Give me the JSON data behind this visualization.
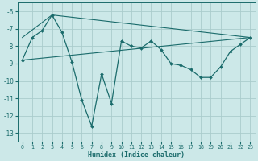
{
  "xlabel": "Humidex (Indice chaleur)",
  "bg_color": "#cce8e8",
  "grid_color": "#aacccc",
  "line_color": "#1a6b6b",
  "xlim": [
    -0.5,
    23.5
  ],
  "ylim": [
    -13.5,
    -5.5
  ],
  "yticks": [
    -13,
    -12,
    -11,
    -10,
    -9,
    -8,
    -7,
    -6
  ],
  "xticks": [
    0,
    1,
    2,
    3,
    4,
    5,
    6,
    7,
    8,
    9,
    10,
    11,
    12,
    13,
    14,
    15,
    16,
    17,
    18,
    19,
    20,
    21,
    22,
    23
  ],
  "line1_x": [
    0,
    1,
    2,
    3,
    4,
    5,
    6,
    7,
    8,
    9,
    10,
    11,
    12,
    13,
    14,
    15,
    16,
    17,
    18,
    19,
    20,
    21,
    22,
    23
  ],
  "line1_y": [
    -8.8,
    -7.5,
    -7.1,
    -6.2,
    -7.2,
    -8.9,
    -11.1,
    -12.6,
    -9.6,
    -11.3,
    -7.7,
    -8.0,
    -8.1,
    -7.7,
    -8.2,
    -9.0,
    -9.1,
    -9.35,
    -9.8,
    -9.8,
    -9.2,
    -8.3,
    -7.9,
    -7.5
  ],
  "line2_x": [
    0,
    3,
    23
  ],
  "line2_y": [
    -7.5,
    -6.2,
    -7.5
  ],
  "line3_x": [
    0,
    23
  ],
  "line3_y": [
    -8.8,
    -7.5
  ],
  "font_family": "monospace"
}
